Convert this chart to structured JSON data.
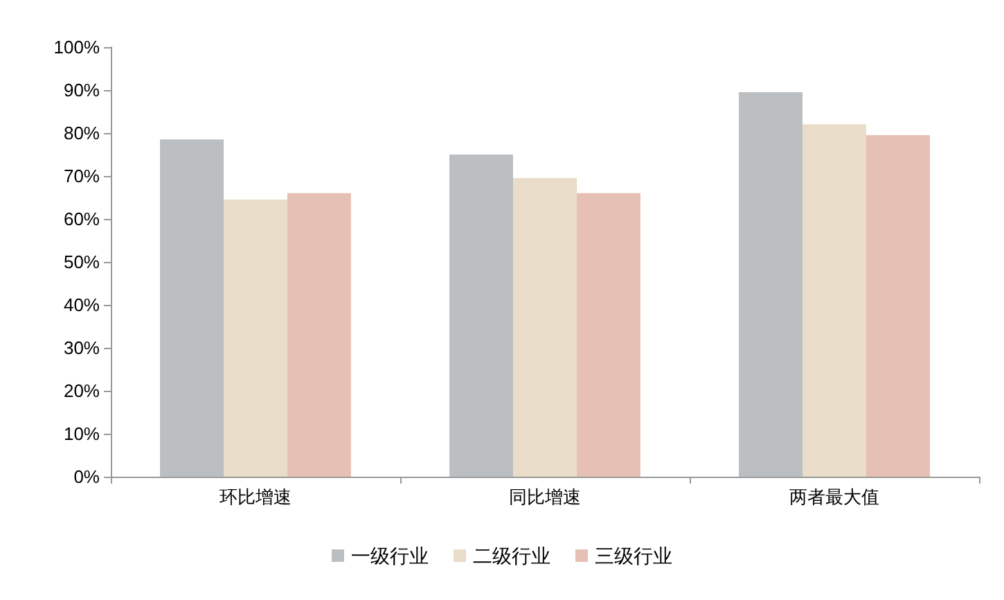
{
  "chart_data": {
    "type": "bar",
    "categories": [
      "环比增速",
      "同比增速",
      "两者最大值"
    ],
    "series": [
      {
        "name": "一级行业",
        "color": "#bcbfc2",
        "values": [
          78.5,
          75,
          89.5
        ]
      },
      {
        "name": "二级行业",
        "color": "#e9dcc8",
        "values": [
          64.5,
          69.5,
          82
        ]
      },
      {
        "name": "三级行业",
        "color": "#e7c0b5",
        "values": [
          66,
          66,
          79.5
        ]
      }
    ],
    "ylim": [
      0,
      100
    ],
    "yticks": [
      {
        "value": 0,
        "label": "0%"
      },
      {
        "value": 10,
        "label": "10%"
      },
      {
        "value": 20,
        "label": "20%"
      },
      {
        "value": 30,
        "label": "30%"
      },
      {
        "value": 40,
        "label": "40%"
      },
      {
        "value": 50,
        "label": "50%"
      },
      {
        "value": 60,
        "label": "60%"
      },
      {
        "value": 70,
        "label": "70%"
      },
      {
        "value": 80,
        "label": "80%"
      },
      {
        "value": 90,
        "label": "90%"
      },
      {
        "value": 100,
        "label": "100%"
      }
    ],
    "grid": false,
    "legend": "bottom"
  }
}
